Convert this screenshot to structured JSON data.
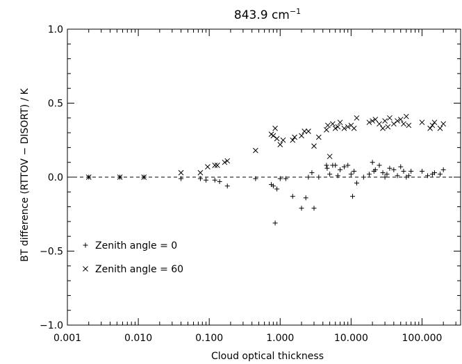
{
  "chart_data": {
    "type": "scatter",
    "title": "843.9 cm",
    "title_superscript": "−1",
    "xlabel": "Cloud optical thickness",
    "ylabel": "BT difference (RTTOV − DISORT) / K",
    "x_scale": "log",
    "xlim": [
      0.001,
      350
    ],
    "ylim": [
      -1.0,
      1.0
    ],
    "x_ticks": [
      {
        "value": 0.001,
        "label": "0.001"
      },
      {
        "value": 0.01,
        "label": "0.010"
      },
      {
        "value": 0.1,
        "label": "0.100"
      },
      {
        "value": 1,
        "label": "1.000"
      },
      {
        "value": 10,
        "label": "10.000"
      },
      {
        "value": 100,
        "label": "100.000"
      }
    ],
    "y_ticks": [
      {
        "value": -1.0,
        "label": "−1.0"
      },
      {
        "value": -0.5,
        "label": "−0.5"
      },
      {
        "value": 0.0,
        "label": "0.0"
      },
      {
        "value": 0.5,
        "label": "0.5"
      },
      {
        "value": 1.0,
        "label": "1.0"
      }
    ],
    "reference_line": {
      "y": 0.0,
      "style": "dashed"
    },
    "legend_position": "lower-left",
    "series": [
      {
        "name": "Zenith angle = 0",
        "marker": "plus",
        "legend_symbol": "+",
        "points": [
          [
            0.002,
            0.0
          ],
          [
            0.0055,
            0.0
          ],
          [
            0.012,
            0.0
          ],
          [
            0.04,
            -0.01
          ],
          [
            0.075,
            -0.01
          ],
          [
            0.09,
            -0.02
          ],
          [
            0.12,
            -0.02
          ],
          [
            0.14,
            -0.03
          ],
          [
            0.18,
            -0.06
          ],
          [
            0.45,
            -0.01
          ],
          [
            0.75,
            -0.05
          ],
          [
            0.8,
            -0.06
          ],
          [
            0.85,
            -0.31
          ],
          [
            0.9,
            -0.08
          ],
          [
            1.0,
            -0.01
          ],
          [
            1.2,
            -0.01
          ],
          [
            1.5,
            -0.13
          ],
          [
            2.0,
            -0.21
          ],
          [
            2.3,
            -0.14
          ],
          [
            2.5,
            0.0
          ],
          [
            3.0,
            -0.21
          ],
          [
            2.8,
            0.03
          ],
          [
            3.5,
            0.0
          ],
          [
            4.5,
            0.08
          ],
          [
            4.6,
            0.06
          ],
          [
            5.0,
            0.02
          ],
          [
            5.5,
            0.08
          ],
          [
            6.0,
            0.08
          ],
          [
            6.5,
            0.01
          ],
          [
            7.0,
            0.05
          ],
          [
            8.0,
            0.07
          ],
          [
            9.0,
            0.08
          ],
          [
            10.0,
            0.02
          ],
          [
            10.5,
            -0.13
          ],
          [
            11.0,
            0.04
          ],
          [
            12.0,
            -0.04
          ],
          [
            15.0,
            0.0
          ],
          [
            18.0,
            0.02
          ],
          [
            20.0,
            0.1
          ],
          [
            21.0,
            0.04
          ],
          [
            22.0,
            0.05
          ],
          [
            25.0,
            0.08
          ],
          [
            28.0,
            0.03
          ],
          [
            30.0,
            0.0
          ],
          [
            32.0,
            0.02
          ],
          [
            35.0,
            0.06
          ],
          [
            40.0,
            0.05
          ],
          [
            45.0,
            0.01
          ],
          [
            50.0,
            0.07
          ],
          [
            55.0,
            0.04
          ],
          [
            60.0,
            0.0
          ],
          [
            65.0,
            0.01
          ],
          [
            70.0,
            0.04
          ],
          [
            100.0,
            0.04
          ],
          [
            120.0,
            0.01
          ],
          [
            140.0,
            0.02
          ],
          [
            150.0,
            0.03
          ],
          [
            180.0,
            0.02
          ],
          [
            200.0,
            0.05
          ]
        ]
      },
      {
        "name": "Zenith angle = 60",
        "marker": "cross",
        "legend_symbol": "×",
        "points": [
          [
            0.002,
            0.0
          ],
          [
            0.0055,
            0.0
          ],
          [
            0.012,
            0.0
          ],
          [
            0.04,
            0.03
          ],
          [
            0.075,
            0.03
          ],
          [
            0.095,
            0.07
          ],
          [
            0.12,
            0.08
          ],
          [
            0.13,
            0.08
          ],
          [
            0.165,
            0.1
          ],
          [
            0.18,
            0.11
          ],
          [
            0.45,
            0.18
          ],
          [
            0.75,
            0.29
          ],
          [
            0.8,
            0.28
          ],
          [
            0.85,
            0.33
          ],
          [
            0.9,
            0.26
          ],
          [
            1.0,
            0.22
          ],
          [
            1.1,
            0.25
          ],
          [
            1.5,
            0.25
          ],
          [
            1.6,
            0.27
          ],
          [
            2.0,
            0.28
          ],
          [
            2.2,
            0.31
          ],
          [
            2.5,
            0.31
          ],
          [
            3.0,
            0.21
          ],
          [
            3.5,
            0.27
          ],
          [
            4.5,
            0.32
          ],
          [
            4.7,
            0.35
          ],
          [
            5.0,
            0.14
          ],
          [
            5.5,
            0.36
          ],
          [
            6.0,
            0.33
          ],
          [
            6.5,
            0.34
          ],
          [
            7.0,
            0.37
          ],
          [
            8.0,
            0.33
          ],
          [
            9.0,
            0.34
          ],
          [
            10.0,
            0.35
          ],
          [
            11.0,
            0.33
          ],
          [
            12.0,
            0.4
          ],
          [
            18.0,
            0.37
          ],
          [
            20.0,
            0.38
          ],
          [
            22.0,
            0.39
          ],
          [
            25.0,
            0.36
          ],
          [
            28.0,
            0.33
          ],
          [
            30.0,
            0.38
          ],
          [
            33.0,
            0.34
          ],
          [
            35.0,
            0.4
          ],
          [
            40.0,
            0.36
          ],
          [
            45.0,
            0.38
          ],
          [
            50.0,
            0.39
          ],
          [
            55.0,
            0.36
          ],
          [
            60.0,
            0.41
          ],
          [
            65.0,
            0.35
          ],
          [
            100.0,
            0.37
          ],
          [
            130.0,
            0.33
          ],
          [
            140.0,
            0.35
          ],
          [
            150.0,
            0.37
          ],
          [
            180.0,
            0.33
          ],
          [
            200.0,
            0.36
          ]
        ]
      }
    ]
  }
}
